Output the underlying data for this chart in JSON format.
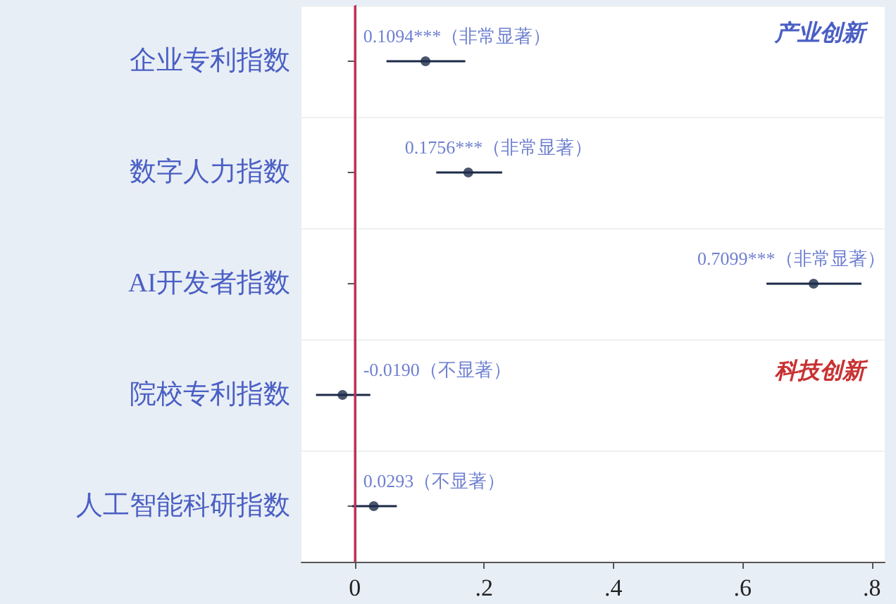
{
  "chart_data": {
    "type": "scatter",
    "orientation": "horizontal",
    "categories": [
      "企业专利指数",
      "数字人力指数",
      "AI开发者指数",
      "院校专利指数",
      "人工智能科研指数"
    ],
    "values": [
      0.1094,
      0.1756,
      0.7099,
      -0.019,
      0.0293
    ],
    "errors": [
      [
        0.049,
        0.171
      ],
      [
        0.126,
        0.228
      ],
      [
        0.637,
        0.784
      ],
      [
        -0.06,
        0.024
      ],
      [
        -0.004,
        0.065
      ]
    ],
    "value_labels": [
      "0.1094***（非常显著）",
      "0.1756***（非常显著）",
      "0.7099***（非常显著）",
      "-0.0190（不显著）",
      "0.0293（不显著）"
    ],
    "color": "#1c2a48",
    "xlim": [
      -0.0825,
      0.82
    ],
    "xticks": [
      0,
      {
        "value": 0.2,
        "label": ".2"
      },
      {
        "value": 0.4,
        "label": ".4"
      },
      {
        "value": 0.6,
        "label": ".6"
      },
      {
        "value": 0.8,
        "label": ".8"
      }
    ],
    "ref_lines": [
      {
        "axis": "x",
        "value": 0,
        "color": "#c8325a"
      }
    ],
    "annotations": [
      "产业创新",
      "科技创新"
    ],
    "grid": "y",
    "marker": "circle"
  }
}
